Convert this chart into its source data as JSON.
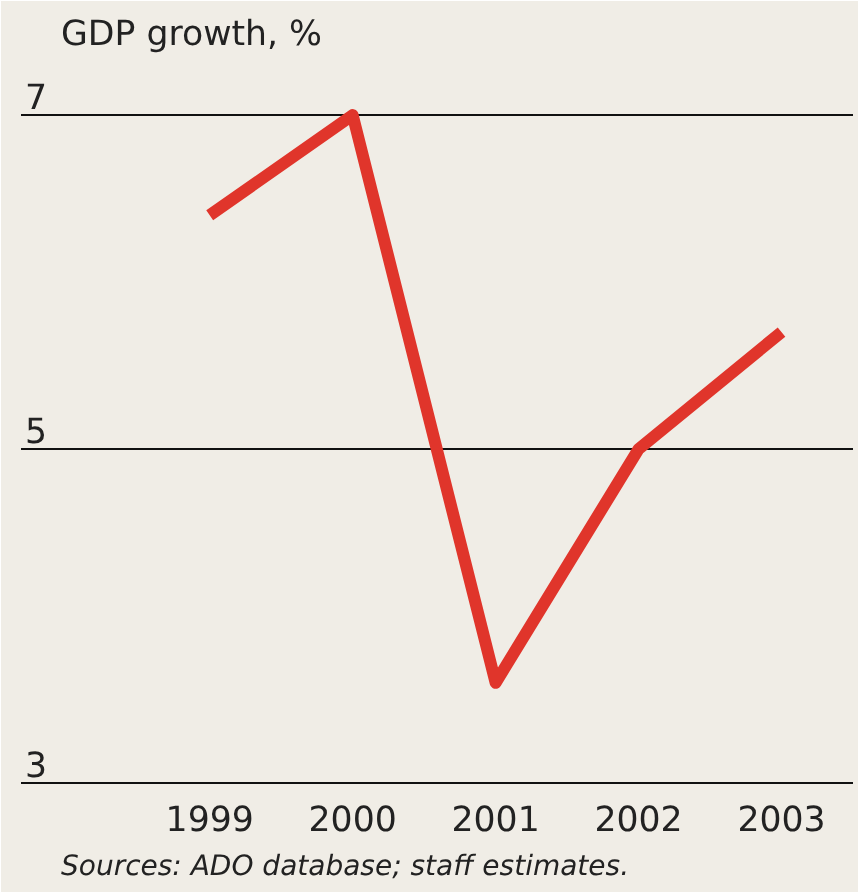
{
  "chart_data": {
    "type": "line",
    "title": "GDP growth, %",
    "categories": [
      "1999",
      "2000",
      "2001",
      "2002",
      "2003"
    ],
    "series": [
      {
        "color": "#e0352b",
        "values": [
          6.4,
          7.0,
          3.6,
          5.0,
          5.7
        ]
      }
    ],
    "ylim": [
      3,
      7.3
    ],
    "yticks": [
      3,
      5,
      7
    ],
    "grid": "y",
    "annotations": [
      "Sources: ADO database; staff estimates."
    ]
  }
}
